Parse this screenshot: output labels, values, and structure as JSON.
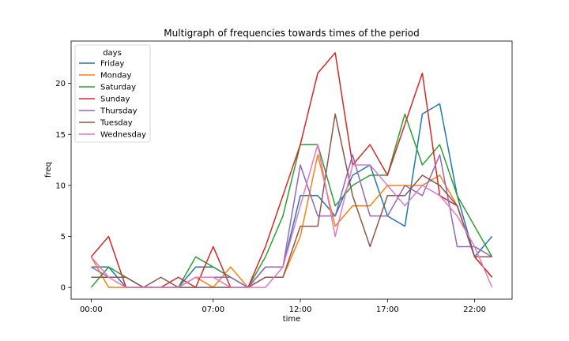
{
  "chart_data": {
    "type": "line",
    "title": "Multigraph of frequencies towards times of the period",
    "xlabel": "time",
    "ylabel": "freq",
    "x": [
      0,
      1,
      2,
      3,
      4,
      5,
      6,
      7,
      8,
      9,
      10,
      11,
      12,
      13,
      14,
      15,
      16,
      17,
      18,
      19,
      20,
      21,
      22,
      23
    ],
    "xticks": [
      0,
      7,
      12,
      17,
      22
    ],
    "xtick_labels": [
      "00:00",
      "07:00",
      "12:00",
      "17:00",
      "22:00"
    ],
    "xlim": [
      -1.15,
      24.15
    ],
    "yticks": [
      0,
      5,
      10,
      15,
      20
    ],
    "ylim": [
      -1.15,
      24.15
    ],
    "grid": false,
    "legend_title": "days",
    "legend_placement": "top-left",
    "series": [
      {
        "name": "Friday",
        "color": "#1f77b4",
        "values": [
          2,
          2,
          0,
          0,
          0,
          0,
          2,
          2,
          1,
          0,
          2,
          2,
          9,
          9,
          7,
          11,
          12,
          7,
          6,
          17,
          18,
          9,
          3,
          5
        ]
      },
      {
        "name": "Monday",
        "color": "#ff7f0e",
        "values": [
          3,
          0,
          0,
          0,
          0,
          0,
          1,
          0,
          2,
          0,
          1,
          1,
          5,
          13,
          6,
          8,
          8,
          10,
          10,
          10,
          11,
          8,
          3,
          1
        ]
      },
      {
        "name": "Saturday",
        "color": "#2ca02c",
        "values": [
          0,
          2,
          1,
          0,
          0,
          0,
          3,
          2,
          1,
          0,
          3,
          7,
          14,
          14,
          8,
          10,
          11,
          11,
          17,
          12,
          14,
          9,
          6,
          3
        ]
      },
      {
        "name": "Sunday",
        "color": "#d62728",
        "values": [
          3,
          5,
          0,
          0,
          0,
          1,
          0,
          4,
          0,
          0,
          4,
          9,
          14,
          21,
          23,
          12,
          14,
          11,
          16,
          21,
          9,
          8,
          3,
          1
        ]
      },
      {
        "name": "Thursday",
        "color": "#9467bd",
        "values": [
          2,
          1,
          1,
          0,
          0,
          0,
          1,
          1,
          1,
          0,
          2,
          2,
          12,
          7,
          7,
          13,
          7,
          7,
          10,
          9,
          13,
          4,
          4,
          3
        ]
      },
      {
        "name": "Tuesday",
        "color": "#8c564b",
        "values": [
          1,
          1,
          1,
          0,
          1,
          0,
          0,
          0,
          0,
          0,
          1,
          1,
          6,
          6,
          17,
          9,
          4,
          9,
          9,
          11,
          10,
          8,
          3,
          3
        ]
      },
      {
        "name": "Wednesday",
        "color": "#e377c2",
        "values": [
          3,
          1,
          0,
          0,
          0,
          0,
          1,
          1,
          0,
          0,
          0,
          2,
          8,
          14,
          5,
          12,
          12,
          10,
          8,
          10,
          9,
          7,
          4,
          0
        ]
      }
    ]
  }
}
